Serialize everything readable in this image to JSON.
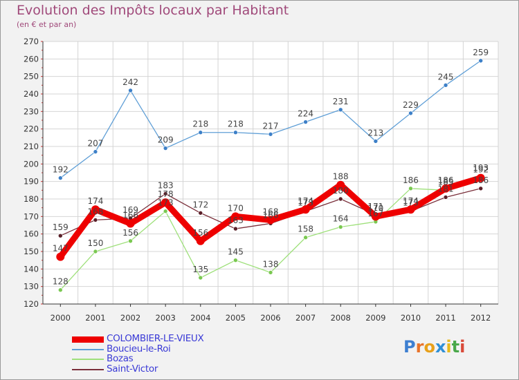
{
  "title": "Evolution des Impôts locaux par Habitant",
  "subtitle": "(en € et par an)",
  "logo": {
    "text": "Proxiti",
    "letter_colors": [
      "#3d7fd1",
      "#e8732a",
      "#e8a01a",
      "#2f8fd6",
      "#e8b91a",
      "#4aa84a",
      "#d94a3a"
    ]
  },
  "chart_data": {
    "type": "line",
    "title": "Evolution des Impôts locaux par Habitant",
    "subtitle": "(en € et par an)",
    "xlabel": "",
    "ylabel": "",
    "categories": [
      "2000",
      "2001",
      "2002",
      "2003",
      "2004",
      "2005",
      "2006",
      "2007",
      "2008",
      "2009",
      "2010",
      "2011",
      "2012"
    ],
    "ylim": [
      120,
      270
    ],
    "yticks": [
      120,
      130,
      140,
      150,
      160,
      170,
      180,
      190,
      200,
      210,
      220,
      230,
      240,
      250,
      260,
      270
    ],
    "grid": true,
    "legend_position": "bottom-left",
    "series": [
      {
        "name": "Saint-Victor",
        "color": "#7a2f3a",
        "point_color": "#5a1f28",
        "width": 1.3,
        "radius": 3,
        "values": [
          159,
          168,
          169,
          183,
          172,
          163,
          166,
          173,
          180,
          171,
          173,
          181,
          186
        ],
        "labels": [
          "159",
          "168",
          "169",
          "183",
          "172",
          "163",
          "166",
          "173",
          "180",
          "171",
          "173",
          "181",
          "186"
        ]
      },
      {
        "name": "Bozas",
        "color": "#9ee07a",
        "point_color": "#7ac851",
        "width": 1.3,
        "radius": 3,
        "values": [
          128,
          150,
          156,
          173,
          135,
          145,
          138,
          158,
          164,
          167,
          186,
          185,
          193
        ],
        "labels": [
          "128",
          "150",
          "156",
          "173",
          "135",
          "145",
          "138",
          "158",
          "164",
          "167",
          "186",
          "185",
          "193"
        ]
      },
      {
        "name": "Boucieu-le-Roi",
        "color": "#5e9ed6",
        "point_color": "#3d80c8",
        "width": 1.3,
        "radius": 3,
        "values": [
          192,
          207,
          242,
          209,
          218,
          218,
          217,
          224,
          231,
          213,
          229,
          245,
          259
        ],
        "labels": [
          "192",
          "207",
          "242",
          "209",
          "218",
          "218",
          "217",
          "224",
          "231",
          "213",
          "229",
          "245",
          "259"
        ]
      },
      {
        "name": "COLOMBIER-LE-VIEUX",
        "color": "#ee0000",
        "point_color": "#ee0000",
        "width": 9,
        "radius": 6,
        "values": [
          147,
          174,
          166,
          178,
          156,
          170,
          168,
          174,
          188,
          170,
          174,
          186,
          192
        ],
        "labels": [
          "147",
          "174",
          "166",
          "178",
          "156",
          "170",
          "168",
          "174",
          "188",
          "170",
          "174",
          "186",
          "192"
        ]
      }
    ]
  },
  "legend": [
    {
      "label": "COLOMBIER-LE-VIEUX",
      "color": "#ee0000",
      "thickness": 9
    },
    {
      "label": "Boucieu-le-Roi",
      "color": "#5e9ed6",
      "thickness": 2
    },
    {
      "label": "Bozas",
      "color": "#9ee07a",
      "thickness": 2
    },
    {
      "label": "Saint-Victor",
      "color": "#7a2f3a",
      "thickness": 2
    }
  ]
}
